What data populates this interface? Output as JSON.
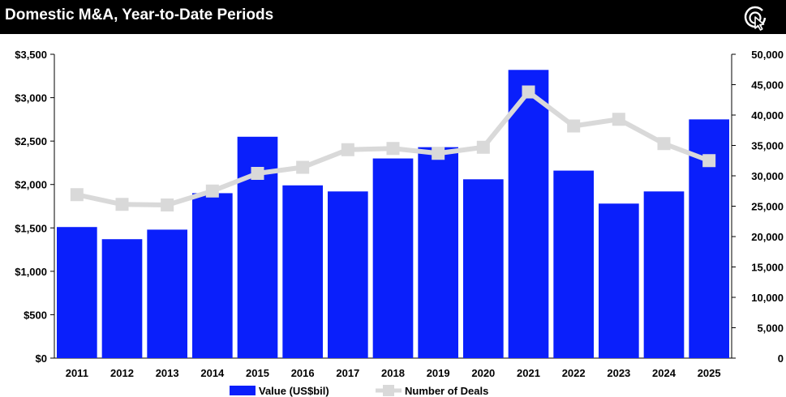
{
  "header": {
    "title": "Domestic M&A, Year-to-Date Periods",
    "logo_icon": "cursor-target-icon"
  },
  "colors": {
    "bar": "#0a1ffb",
    "line": "#d9d9d9",
    "title_bar": "#000000"
  },
  "chart_data": {
    "type": "bar",
    "categories": [
      "2011",
      "2012",
      "2013",
      "2014",
      "2015",
      "2016",
      "2017",
      "2018",
      "2019",
      "2020",
      "2021",
      "2022",
      "2023",
      "2024",
      "2025"
    ],
    "series": [
      {
        "name": "Value (US$bil)",
        "type": "bar",
        "axis": "left",
        "values": [
          1510,
          1370,
          1480,
          1900,
          2550,
          1990,
          1920,
          2300,
          2430,
          2060,
          3320,
          2160,
          1780,
          1920,
          2750
        ]
      },
      {
        "name": "Number of Deals",
        "type": "line",
        "axis": "right",
        "values": [
          26900,
          25300,
          25200,
          27500,
          30400,
          31400,
          34300,
          34500,
          33700,
          34700,
          43800,
          38200,
          39300,
          35300,
          32500
        ]
      }
    ],
    "y_left": {
      "min": 0,
      "max": 3500,
      "ticks": [
        "$0",
        "$500",
        "$1,000",
        "$1,500",
        "$2,000",
        "$2,500",
        "$3,000",
        "$3,500"
      ]
    },
    "y_right": {
      "min": 0,
      "max": 50000,
      "ticks": [
        "0",
        "5,000",
        "10,000",
        "15,000",
        "20,000",
        "25,000",
        "30,000",
        "35,000",
        "40,000",
        "45,000",
        "50,000"
      ]
    },
    "grid": false,
    "legend_position": "bottom-center"
  }
}
